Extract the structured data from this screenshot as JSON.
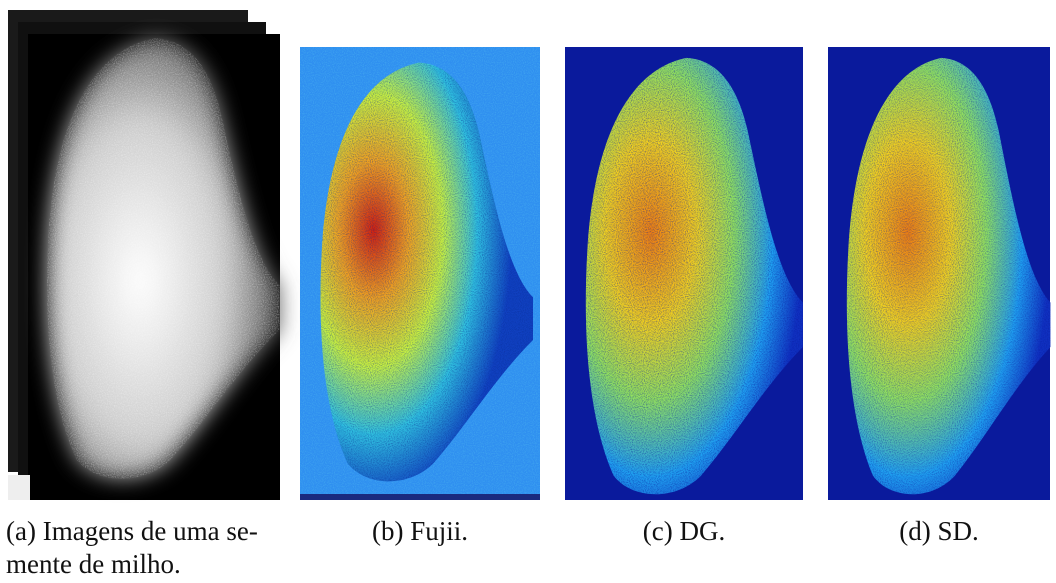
{
  "figure": {
    "subfigures": [
      {
        "caption_lines": [
          "(a) Imagens de uma se-",
          "mente de milho."
        ]
      },
      {
        "caption_lines": [
          "(b) Fujii."
        ]
      },
      {
        "caption_lines": [
          "(c) DG."
        ]
      },
      {
        "caption_lines": [
          "(d) SD."
        ]
      }
    ]
  }
}
